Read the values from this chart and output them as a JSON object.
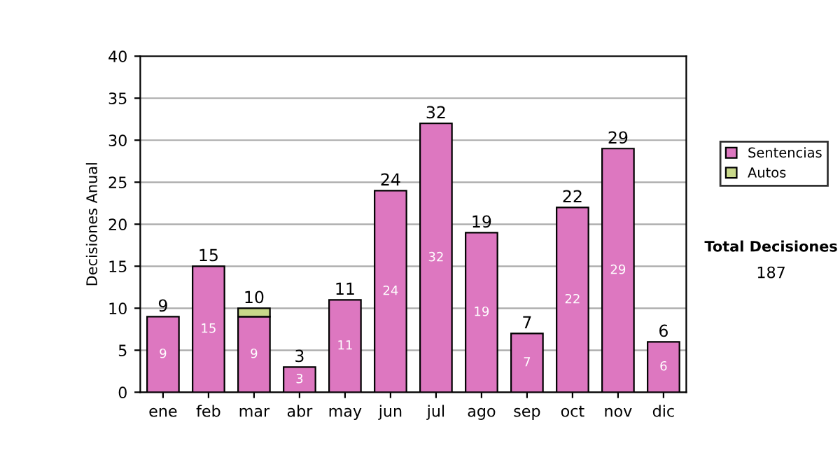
{
  "chart_data": {
    "type": "bar",
    "stacked": true,
    "ylabel": "Decisiones Anual",
    "categories": [
      "ene",
      "feb",
      "mar",
      "abr",
      "may",
      "jun",
      "jul",
      "ago",
      "sep",
      "oct",
      "nov",
      "dic"
    ],
    "series": [
      {
        "name": "Sentencias",
        "color": "#dd77c0",
        "values": [
          9,
          15,
          9,
          3,
          11,
          24,
          32,
          19,
          7,
          22,
          29,
          6
        ],
        "value_labels": [
          "9",
          "15",
          "9",
          "3",
          "11",
          "24",
          "32",
          "19",
          "7",
          "22",
          "29",
          "6"
        ]
      },
      {
        "name": "Autos",
        "color": "#c8d88a",
        "values": [
          null,
          null,
          1,
          null,
          null,
          null,
          null,
          null,
          null,
          null,
          null,
          null
        ]
      }
    ],
    "totals": [
      "9",
      "15",
      "10",
      "3",
      "11",
      "24",
      "32",
      "19",
      "7",
      "22",
      "29",
      "6"
    ],
    "ylim": [
      0,
      40
    ],
    "yticks": [
      0,
      5,
      10,
      15,
      20,
      25,
      30,
      35,
      40
    ],
    "grid": "y",
    "legend": "right",
    "annotations": [
      "Total Decisiones",
      "187"
    ]
  }
}
